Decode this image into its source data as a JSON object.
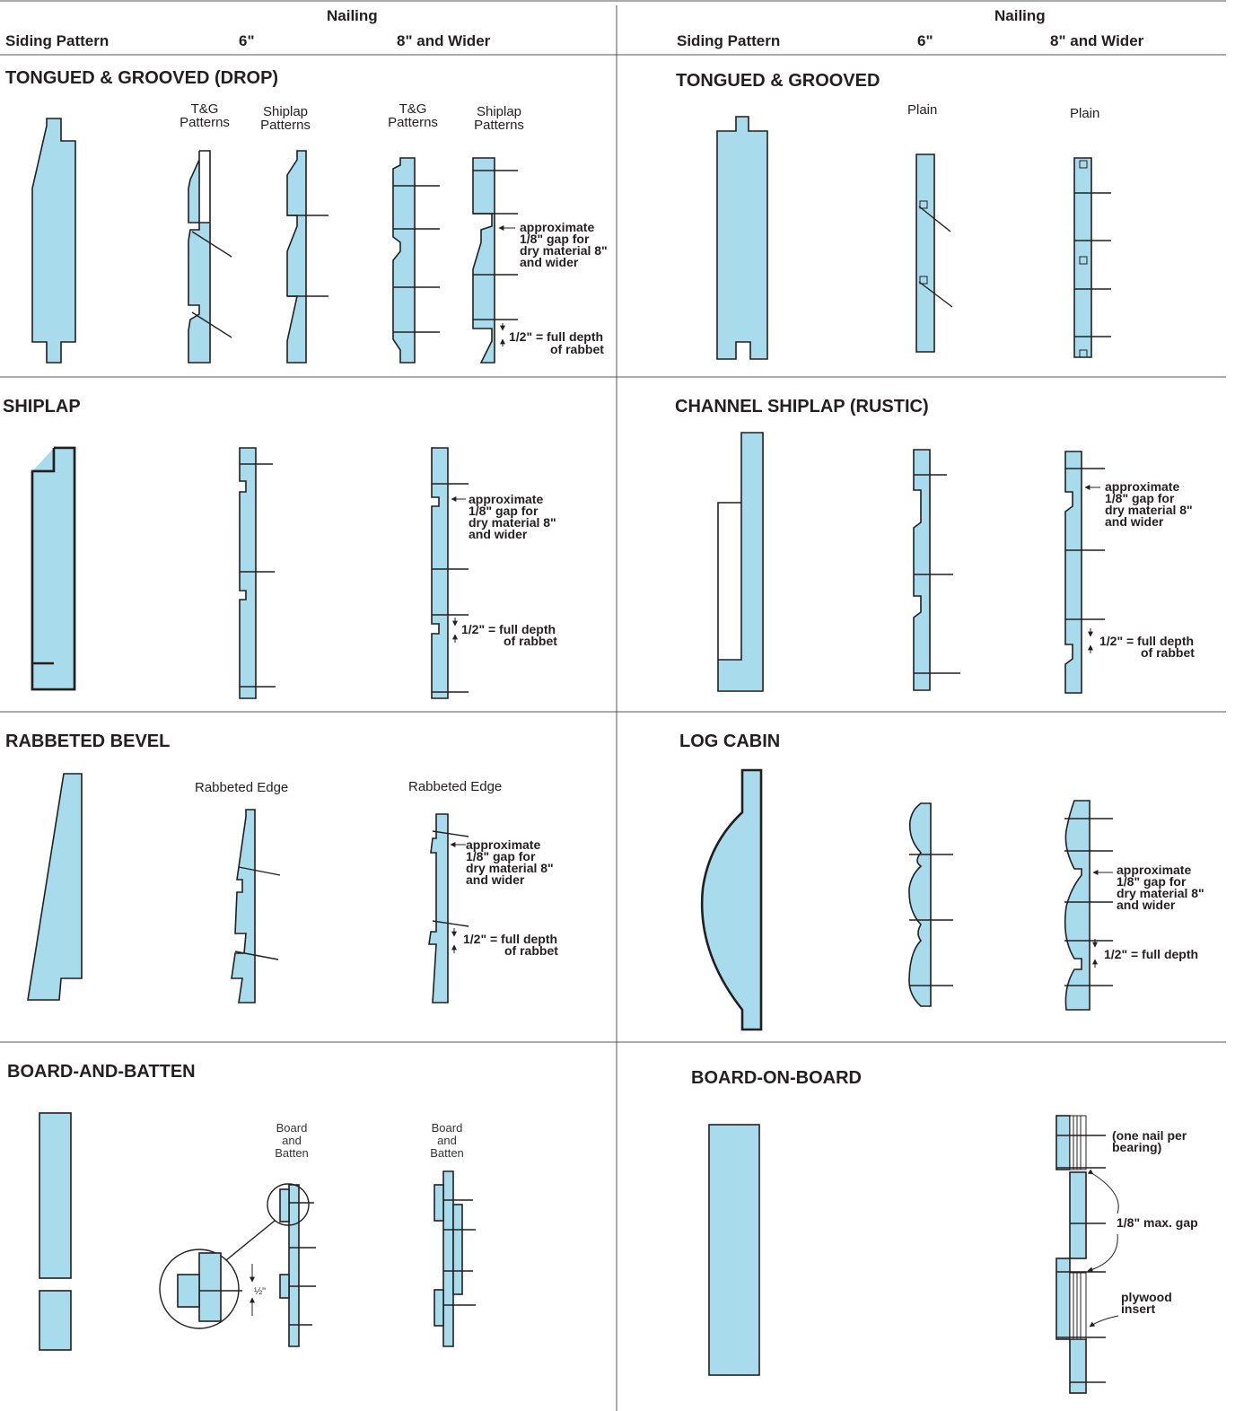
{
  "header": {
    "nailing": "Nailing",
    "siding_pattern": "Siding Pattern",
    "six_inch": "6\"",
    "eight_wider": "8\" and Wider"
  },
  "sections": {
    "tg_drop": {
      "title": "TONGUED & GROOVED (DROP)",
      "tg_patterns": "T&G Patterns",
      "shiplap_patterns": "Shiplap Patterns",
      "gap_note": "approximate 1/8\" gap for dry material 8\" and wider",
      "rabbet_note_a": "1/2\" = full depth",
      "rabbet_note_b": "of rabbet"
    },
    "tg": {
      "title": "TONGUED & GROOVED",
      "plain": "Plain"
    },
    "shiplap": {
      "title": "SHIPLAP",
      "gap_note": "approximate 1/8\" gap for dry material 8\" and wider",
      "rabbet_note_a": "1/2\" = full depth",
      "rabbet_note_b": "of rabbet"
    },
    "channel": {
      "title": "CHANNEL SHIPLAP (RUSTIC)",
      "gap_note": "approximate 1/8\" gap for dry material 8\" and wider",
      "rabbet_note_a": "1/2\" = full depth",
      "rabbet_note_b": "of rabbet"
    },
    "bevel": {
      "title": "RABBETED BEVEL",
      "rabbeted_edge": "Rabbeted Edge",
      "gap_note": "approximate 1/8\" gap for dry material 8\" and wider",
      "rabbet_note_a": "1/2\" = full depth",
      "rabbet_note_b": "of rabbet"
    },
    "log": {
      "title": "LOG CABIN",
      "gap_note": "approximate 1/8\" gap for dry material 8\" and wider",
      "rabbet_note": "1/2\" = full depth"
    },
    "batten": {
      "title": "BOARD-AND-BATTEN",
      "board_and_batten": "Board and Batten",
      "half_inch": "½\""
    },
    "onboard": {
      "title": "BOARD-ON-BOARD",
      "one_nail": "(one nail per bearing)",
      "max_gap": "1/8\" max. gap",
      "plywood": "plywood insert"
    }
  },
  "colors": {
    "fill": "#a8dcec",
    "stroke": "#231f20"
  }
}
